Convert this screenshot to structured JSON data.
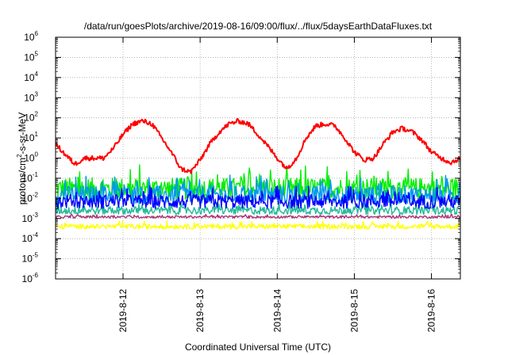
{
  "chart_data": {
    "type": "line",
    "title": "/data/run/goesPlots/archive/2019-08-16/09:00/flux/../flux/5daysEarthDataFluxes.txt",
    "xlabel": "Coordinated Universal Time (UTC)",
    "ylabel_parts": [
      "protons/cm",
      "2",
      "-s-sr-MeV"
    ],
    "y_scale": "log",
    "ylim": [
      1e-06,
      1000000.0
    ],
    "y_ticks": [
      {
        "base": "10",
        "exp": "-6"
      },
      {
        "base": "10",
        "exp": "-5"
      },
      {
        "base": "10",
        "exp": "-4"
      },
      {
        "base": "10",
        "exp": "-3"
      },
      {
        "base": "10",
        "exp": "-2"
      },
      {
        "base": "10",
        "exp": "-1"
      },
      {
        "base": "10",
        "exp": "0"
      },
      {
        "base": "10",
        "exp": "1"
      },
      {
        "base": "10",
        "exp": "2"
      },
      {
        "base": "10",
        "exp": "3"
      },
      {
        "base": "10",
        "exp": "4"
      },
      {
        "base": "10",
        "exp": "5"
      },
      {
        "base": "10",
        "exp": "6"
      }
    ],
    "x_ticks": [
      "2019-8-12",
      "2019-8-13",
      "2019-8-14",
      "2019-8-15",
      "2019-8-16"
    ],
    "xlim": [
      "2019-08-11 03:00",
      "2019-08-16 09:00"
    ],
    "grid": true,
    "series": [
      {
        "color": "#ff0000",
        "x": [
          "2019-08-11 03:00",
          "2019-08-11 06:00",
          "2019-08-11 09:00",
          "2019-08-11 12:00",
          "2019-08-11 15:00",
          "2019-08-11 18:00",
          "2019-08-11 21:00",
          "2019-08-12 00:00",
          "2019-08-12 03:00",
          "2019-08-12 06:00",
          "2019-08-12 09:00",
          "2019-08-12 12:00",
          "2019-08-12 15:00",
          "2019-08-12 18:00",
          "2019-08-12 21:00",
          "2019-08-13 00:00",
          "2019-08-13 03:00",
          "2019-08-13 06:00",
          "2019-08-13 09:00",
          "2019-08-13 12:00",
          "2019-08-13 15:00",
          "2019-08-13 18:00",
          "2019-08-13 21:00",
          "2019-08-14 00:00",
          "2019-08-14 03:00",
          "2019-08-14 06:00",
          "2019-08-14 09:00",
          "2019-08-14 12:00",
          "2019-08-14 15:00",
          "2019-08-14 18:00",
          "2019-08-14 21:00",
          "2019-08-15 00:00",
          "2019-08-15 03:00",
          "2019-08-15 06:00",
          "2019-08-15 09:00",
          "2019-08-15 12:00",
          "2019-08-15 15:00",
          "2019-08-15 18:00",
          "2019-08-15 21:00",
          "2019-08-16 00:00",
          "2019-08-16 03:00",
          "2019-08-16 06:00",
          "2019-08-16 09:00"
        ],
        "values": [
          5,
          1.5,
          0.5,
          1,
          1,
          1,
          3,
          15,
          50,
          70,
          50,
          10,
          2,
          0.3,
          0.2,
          0.8,
          5,
          20,
          50,
          70,
          50,
          15,
          4,
          1,
          0.3,
          1,
          10,
          40,
          50,
          40,
          10,
          2,
          0.8,
          1,
          5,
          20,
          30,
          20,
          8,
          2,
          1,
          0.6,
          1
        ],
        "jitter": 0.12
      },
      {
        "color": "#00ee00",
        "level": 0.03,
        "spread": 0.55
      },
      {
        "color": "#0099ee",
        "level": 0.015,
        "spread": 0.45
      },
      {
        "color": "#0000ff",
        "level": 0.007,
        "spread": 0.35
      },
      {
        "color": "#22bb99",
        "level": 0.0025,
        "spread": 0.2
      },
      {
        "color": "#aa3377",
        "level": 0.0012,
        "spread": 0.06
      },
      {
        "color": "#ffff00",
        "level": 0.0004,
        "spread": 0.12
      }
    ]
  }
}
